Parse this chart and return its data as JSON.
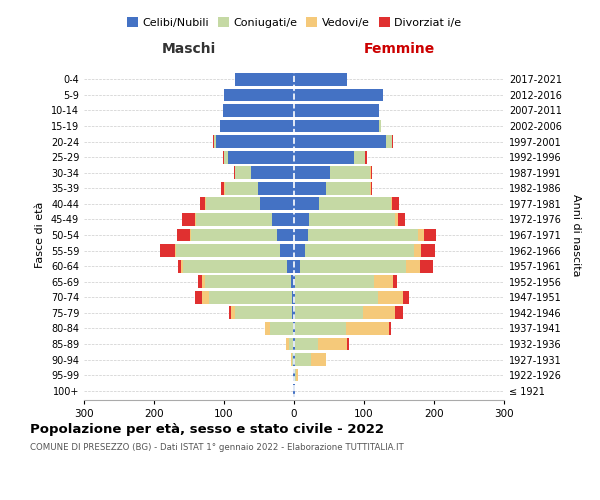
{
  "age_groups": [
    "100+",
    "95-99",
    "90-94",
    "85-89",
    "80-84",
    "75-79",
    "70-74",
    "65-69",
    "60-64",
    "55-59",
    "50-54",
    "45-49",
    "40-44",
    "35-39",
    "30-34",
    "25-29",
    "20-24",
    "15-19",
    "10-14",
    "5-9",
    "0-4"
  ],
  "birth_years": [
    "≤ 1921",
    "1922-1926",
    "1927-1931",
    "1932-1936",
    "1937-1941",
    "1942-1946",
    "1947-1951",
    "1952-1956",
    "1957-1961",
    "1962-1966",
    "1967-1971",
    "1972-1976",
    "1977-1981",
    "1982-1986",
    "1987-1991",
    "1992-1996",
    "1997-2001",
    "2002-2006",
    "2007-2011",
    "2012-2016",
    "2017-2021"
  ],
  "males_celibi": [
    1,
    1,
    1,
    1,
    2,
    3,
    3,
    5,
    10,
    20,
    25,
    32,
    48,
    52,
    62,
    95,
    112,
    106,
    102,
    100,
    85
  ],
  "males_coniugati": [
    0,
    0,
    2,
    6,
    32,
    82,
    118,
    122,
    148,
    148,
    122,
    108,
    78,
    47,
    22,
    5,
    2,
    0,
    0,
    0,
    0
  ],
  "males_vedovi": [
    0,
    0,
    1,
    5,
    8,
    5,
    10,
    5,
    3,
    2,
    2,
    2,
    1,
    1,
    0,
    0,
    0,
    0,
    0,
    0,
    0
  ],
  "males_divorziati": [
    0,
    0,
    0,
    0,
    0,
    3,
    10,
    5,
    5,
    22,
    18,
    18,
    8,
    5,
    2,
    2,
    2,
    0,
    0,
    0,
    0
  ],
  "females_nubili": [
    1,
    1,
    2,
    2,
    2,
    2,
    2,
    2,
    8,
    15,
    20,
    22,
    36,
    46,
    52,
    86,
    132,
    122,
    122,
    127,
    76
  ],
  "females_coniugate": [
    0,
    2,
    22,
    32,
    72,
    96,
    118,
    112,
    152,
    157,
    157,
    122,
    102,
    62,
    57,
    15,
    8,
    2,
    0,
    0,
    0
  ],
  "females_vedove": [
    0,
    2,
    22,
    42,
    62,
    46,
    36,
    28,
    20,
    10,
    8,
    5,
    2,
    2,
    1,
    1,
    0,
    0,
    0,
    0,
    0
  ],
  "females_divorziate": [
    0,
    0,
    0,
    2,
    2,
    12,
    8,
    5,
    18,
    20,
    18,
    10,
    10,
    2,
    2,
    2,
    2,
    0,
    0,
    0,
    0
  ],
  "colors_celibi": "#4472c4",
  "colors_coniugati": "#c5d9a4",
  "colors_vedovi": "#f5c97a",
  "colors_divorziati": "#e03030",
  "xlim": 300,
  "age_groups_label": "Fasce di età",
  "birth_years_label": "Anni di nascita",
  "maschi_label": "Maschi",
  "femmine_label": "Femmine",
  "title": "Popolazione per età, sesso e stato civile - 2022",
  "subtitle": "COMUNE DI PRESEZZO (BG) - Dati ISTAT 1° gennaio 2022 - Elaborazione TUTTITALIA.IT",
  "legend_labels": [
    "Celibi/Nubili",
    "Coniugati/e",
    "Vedovi/e",
    "Divorziat i/e"
  ],
  "bg_color": "#ffffff"
}
